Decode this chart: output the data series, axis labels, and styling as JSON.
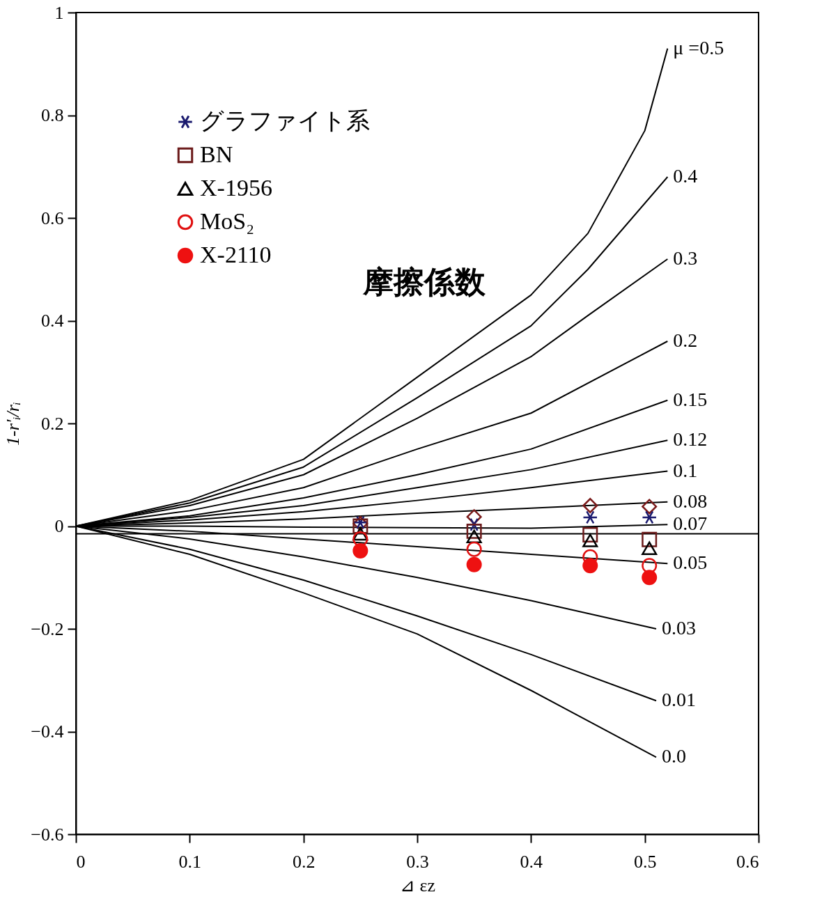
{
  "chart_data": {
    "type": "line",
    "xlabel": "⊿ εz",
    "ylabel": "1-r'ᵢ/rᵢ",
    "xlim": [
      0,
      0.6
    ],
    "xticks": [
      0,
      0.1,
      0.2,
      0.3,
      0.4,
      0.5,
      0.6
    ],
    "ylim": [
      -0.6,
      1
    ],
    "yticks": [
      -0.6,
      -0.4,
      -0.2,
      0,
      0.2,
      0.4,
      0.6,
      0.8,
      1
    ],
    "grid": false,
    "legend": "top left",
    "annotations": [
      "摩擦係数"
    ],
    "ref_lines": [
      {
        "axis": "y",
        "value": -0.015,
        "color": "#000000"
      }
    ],
    "series": [
      {
        "name": "μ =0.5",
        "color": "#000000",
        "marker": "none",
        "x": [
          0,
          0.1,
          0.2,
          0.3,
          0.4,
          0.45,
          0.5,
          0.52
        ],
        "values": [
          0,
          0.05,
          0.13,
          0.29,
          0.45,
          0.57,
          0.77,
          0.93
        ]
      },
      {
        "name": "0.4",
        "color": "#000000",
        "marker": "none",
        "x": [
          0,
          0.1,
          0.2,
          0.3,
          0.4,
          0.45,
          0.52
        ],
        "values": [
          0,
          0.045,
          0.115,
          0.25,
          0.39,
          0.5,
          0.68
        ]
      },
      {
        "name": "0.3",
        "color": "#000000",
        "marker": "none",
        "x": [
          0,
          0.1,
          0.2,
          0.3,
          0.4,
          0.45,
          0.52
        ],
        "values": [
          0,
          0.04,
          0.1,
          0.21,
          0.33,
          0.41,
          0.52
        ]
      },
      {
        "name": "0.2",
        "color": "#000000",
        "marker": "none",
        "x": [
          0,
          0.1,
          0.2,
          0.3,
          0.4,
          0.52
        ],
        "values": [
          0,
          0.03,
          0.075,
          0.15,
          0.22,
          0.36
        ]
      },
      {
        "name": "0.15",
        "color": "#000000",
        "marker": "none",
        "x": [
          0,
          0.1,
          0.2,
          0.3,
          0.4,
          0.52
        ],
        "values": [
          0,
          0.02,
          0.055,
          0.1,
          0.15,
          0.245
        ]
      },
      {
        "name": "0.12",
        "color": "#000000",
        "marker": "none",
        "x": [
          0,
          0.1,
          0.2,
          0.3,
          0.4,
          0.52
        ],
        "values": [
          0,
          0.017,
          0.04,
          0.075,
          0.11,
          0.167
        ]
      },
      {
        "name": "0.1",
        "color": "#000000",
        "marker": "none",
        "x": [
          0,
          0.1,
          0.2,
          0.3,
          0.4,
          0.52
        ],
        "values": [
          0,
          0.012,
          0.028,
          0.05,
          0.075,
          0.107
        ]
      },
      {
        "name": "0.08",
        "color": "#000000",
        "marker": "none",
        "x": [
          0,
          0.1,
          0.2,
          0.3,
          0.4,
          0.52
        ],
        "values": [
          0,
          0.006,
          0.014,
          0.025,
          0.035,
          0.047
        ]
      },
      {
        "name": "0.07",
        "color": "#000000",
        "marker": "none",
        "x": [
          0,
          0.1,
          0.2,
          0.3,
          0.4,
          0.52
        ],
        "values": [
          0,
          0,
          -0.002,
          -0.003,
          -0.004,
          0.003
        ]
      },
      {
        "name": "0.05",
        "color": "#000000",
        "marker": "none",
        "x": [
          0,
          0.1,
          0.2,
          0.3,
          0.4,
          0.52
        ],
        "values": [
          0,
          -0.01,
          -0.025,
          -0.04,
          -0.055,
          -0.073
        ]
      },
      {
        "name": "0.03",
        "color": "#000000",
        "marker": "none",
        "x": [
          0,
          0.1,
          0.2,
          0.3,
          0.4,
          0.51
        ],
        "values": [
          0,
          -0.025,
          -0.06,
          -0.1,
          -0.145,
          -0.2
        ]
      },
      {
        "name": "0.01",
        "color": "#000000",
        "marker": "none",
        "x": [
          0,
          0.1,
          0.2,
          0.3,
          0.4,
          0.51
        ],
        "values": [
          0,
          -0.045,
          -0.105,
          -0.175,
          -0.25,
          -0.34
        ]
      },
      {
        "name": "0.0",
        "color": "#000000",
        "marker": "none",
        "x": [
          0,
          0.1,
          0.2,
          0.3,
          0.4,
          0.51
        ],
        "values": [
          0,
          -0.055,
          -0.13,
          -0.21,
          -0.32,
          -0.45
        ]
      },
      {
        "type": "scatter",
        "color": "#7a1a1a",
        "marker": "diamond",
        "x": [
          0.25,
          0.35,
          0.452,
          0.504
        ],
        "values": [
          0.005,
          0.018,
          0.04,
          0.038
        ]
      },
      {
        "name": "グラファイト系",
        "type": "scatter",
        "color": "#1a1a6e",
        "marker": "cross",
        "x": [
          0.25,
          0.35,
          0.452,
          0.504
        ],
        "values": [
          0.007,
          0.003,
          0.017,
          0.017
        ]
      },
      {
        "name": "BN",
        "type": "scatter",
        "color": "#6b1a1a",
        "marker": "square",
        "x": [
          0.25,
          0.35,
          0.452,
          0.504
        ],
        "values": [
          0,
          -0.01,
          -0.017,
          -0.026
        ]
      },
      {
        "name": "X-1956",
        "type": "scatter",
        "color": "#000000",
        "marker": "triangle",
        "x": [
          0.25,
          0.35,
          0.452,
          0.504
        ],
        "values": [
          -0.015,
          -0.02,
          -0.028,
          -0.043
        ]
      },
      {
        "name": "MoS₂",
        "type": "scatter",
        "color": "#e01010",
        "marker": "circle",
        "x": [
          0.25,
          0.35,
          0.452,
          0.504
        ],
        "values": [
          -0.025,
          -0.045,
          -0.06,
          -0.077
        ]
      },
      {
        "name": "X-2110",
        "type": "scatter",
        "color": "#ee1111",
        "marker": "circle",
        "x": [
          0.25,
          0.35,
          0.452,
          0.504
        ],
        "values": [
          -0.048,
          -0.075,
          -0.077,
          -0.1
        ]
      }
    ]
  }
}
